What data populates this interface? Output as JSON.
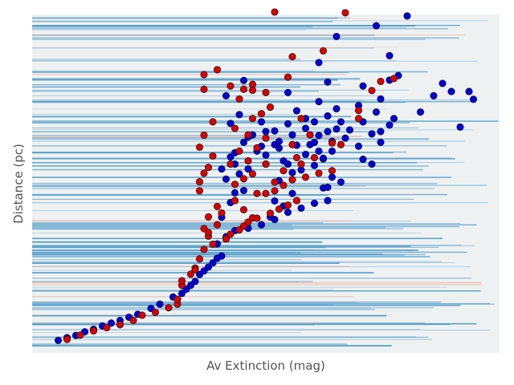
{
  "chart_data": {
    "type": "scatter",
    "title": "",
    "xlabel": "Av Extinction (mag)",
    "ylabel": "Distance (pc)",
    "xlim": [
      0,
      10
    ],
    "ylim": [
      0,
      1000
    ],
    "x_ticks_visible": false,
    "y_ticks_visible": false,
    "background": "#eef1f1",
    "background_lines": {
      "blue": "#4a98c8",
      "red": "#f0b8a8"
    },
    "series": [
      {
        "color": "#0000dd",
        "points": [
          [
            0.3,
            19
          ],
          [
            0.5,
            27
          ],
          [
            0.7,
            34
          ],
          [
            0.9,
            45
          ],
          [
            1.1,
            53
          ],
          [
            1.3,
            63
          ],
          [
            1.5,
            72
          ],
          [
            1.7,
            80
          ],
          [
            1.9,
            90
          ],
          [
            2.1,
            99
          ],
          [
            2.4,
            117
          ],
          [
            2.6,
            130
          ],
          [
            2.9,
            152
          ],
          [
            3.1,
            163
          ],
          [
            3.2,
            176
          ],
          [
            3.3,
            188
          ],
          [
            3.4,
            200
          ],
          [
            3.5,
            221
          ],
          [
            3.6,
            232
          ],
          [
            3.7,
            244
          ],
          [
            3.8,
            257
          ],
          [
            3.9,
            271
          ],
          [
            4.0,
            278
          ],
          [
            3.9,
            315
          ],
          [
            4.1,
            337
          ],
          [
            4.3,
            356
          ],
          [
            4.6,
            363
          ],
          [
            4.9,
            374
          ],
          [
            5.2,
            390
          ],
          [
            5.5,
            412
          ],
          [
            5.8,
            425
          ],
          [
            6.1,
            440
          ],
          [
            6.4,
            448
          ],
          [
            4.0,
            397
          ],
          [
            4.2,
            442
          ],
          [
            4.3,
            472
          ],
          [
            4.5,
            479
          ],
          [
            4.1,
            514
          ],
          [
            4.4,
            530
          ],
          [
            4.0,
            545
          ],
          [
            4.3,
            560
          ],
          [
            4.2,
            582
          ],
          [
            4.3,
            595
          ],
          [
            4.5,
            627
          ],
          [
            4.6,
            643
          ],
          [
            5.0,
            660
          ],
          [
            4.2,
            685
          ],
          [
            4.4,
            712
          ],
          [
            4.1,
            770
          ],
          [
            4.5,
            817
          ],
          [
            5.1,
            398
          ],
          [
            5.4,
            431
          ],
          [
            5.2,
            447
          ],
          [
            5.6,
            470
          ],
          [
            5.3,
            509
          ],
          [
            6.3,
            487
          ],
          [
            6.4,
            489
          ],
          [
            5.6,
            534
          ],
          [
            5.8,
            542
          ],
          [
            6.1,
            556
          ],
          [
            5.0,
            588
          ],
          [
            5.3,
            609
          ],
          [
            5.7,
            618
          ],
          [
            6.3,
            576
          ],
          [
            5.2,
            662
          ],
          [
            5.5,
            684
          ],
          [
            6.1,
            627
          ],
          [
            6.2,
            648
          ],
          [
            6.4,
            708
          ],
          [
            6.7,
            690
          ],
          [
            5.7,
            724
          ],
          [
            6.2,
            752
          ],
          [
            5.5,
            780
          ],
          [
            6.4,
            812
          ],
          [
            7.1,
            740
          ],
          [
            6.2,
            872
          ],
          [
            7.4,
            653
          ],
          [
            7.6,
            627
          ],
          [
            7.2,
            800
          ],
          [
            8.0,
            832
          ],
          [
            7.8,
            893
          ],
          [
            6.6,
            952
          ],
          [
            7.5,
            985
          ],
          [
            8.2,
            1015
          ],
          [
            7.8,
            818
          ],
          [
            6.3,
            578
          ],
          [
            6.0,
            620
          ],
          [
            5.6,
            650
          ],
          [
            6.5,
            630
          ],
          [
            6.8,
            640
          ],
          [
            6.4,
            660
          ],
          [
            5.9,
            700
          ],
          [
            6.6,
            730
          ],
          [
            5.5,
            560
          ],
          [
            5.9,
            590
          ],
          [
            6.2,
            600
          ],
          [
            5.4,
            570
          ],
          [
            4.9,
            615
          ],
          [
            5.3,
            630
          ],
          [
            6.5,
            520
          ],
          [
            6.7,
            505
          ],
          [
            7.2,
            575
          ],
          [
            7.4,
            560
          ],
          [
            7.1,
            615
          ],
          [
            7.6,
            660
          ],
          [
            7.8,
            680
          ],
          [
            7.9,
            700
          ],
          [
            6.9,
            665
          ],
          [
            7.2,
            690
          ],
          [
            7.5,
            720
          ],
          [
            7.6,
            760
          ],
          [
            8.5,
            720
          ],
          [
            8.8,
            770
          ],
          [
            9.2,
            783
          ],
          [
            9.0,
            808
          ],
          [
            9.6,
            783
          ],
          [
            9.7,
            759
          ],
          [
            9.4,
            674
          ],
          [
            4.7,
            650
          ],
          [
            4.9,
            690
          ],
          [
            5.2,
            620
          ],
          [
            5.0,
            560
          ],
          [
            4.6,
            545
          ],
          [
            4.8,
            600
          ],
          [
            5.9,
            670
          ],
          [
            6.1,
            690
          ],
          [
            6.6,
            668
          ],
          [
            6.5,
            600
          ]
        ]
      },
      {
        "color": "#dd0000",
        "points": [
          [
            0.5,
            22
          ],
          [
            0.8,
            35
          ],
          [
            1.1,
            48
          ],
          [
            1.4,
            58
          ],
          [
            1.7,
            67
          ],
          [
            2.0,
            80
          ],
          [
            2.2,
            96
          ],
          [
            2.5,
            105
          ],
          [
            2.8,
            119
          ],
          [
            3.0,
            130
          ],
          [
            3.0,
            145
          ],
          [
            3.1,
            188
          ],
          [
            3.1,
            202
          ],
          [
            3.3,
            222
          ],
          [
            3.4,
            241
          ],
          [
            3.4,
            236
          ],
          [
            3.5,
            269
          ],
          [
            3.6,
            298
          ],
          [
            3.8,
            314
          ],
          [
            3.7,
            339
          ],
          [
            3.7,
            350
          ],
          [
            3.6,
            362
          ],
          [
            3.9,
            374
          ],
          [
            3.7,
            398
          ],
          [
            4.0,
            410
          ],
          [
            3.9,
            430
          ],
          [
            3.5,
            478
          ],
          [
            3.5,
            506
          ],
          [
            3.6,
            532
          ],
          [
            3.7,
            550
          ],
          [
            3.8,
            585
          ],
          [
            3.5,
            612
          ],
          [
            3.6,
            649
          ],
          [
            3.8,
            690
          ],
          [
            4.1,
            330
          ],
          [
            4.2,
            345
          ],
          [
            4.4,
            358
          ],
          [
            4.5,
            370
          ],
          [
            4.6,
            382
          ],
          [
            4.7,
            395
          ],
          [
            4.5,
            420
          ],
          [
            4.3,
            448
          ],
          [
            4.8,
            394
          ],
          [
            5.1,
            409
          ],
          [
            5.3,
            422
          ],
          [
            5.5,
            434
          ],
          [
            5.7,
            448
          ],
          [
            5.0,
            470
          ],
          [
            5.2,
            478
          ],
          [
            5.4,
            495
          ],
          [
            4.3,
            498
          ],
          [
            4.5,
            515
          ],
          [
            4.7,
            530
          ],
          [
            4.2,
            560
          ],
          [
            4.6,
            570
          ],
          [
            4.4,
            600
          ],
          [
            4.8,
            610
          ],
          [
            5.0,
            640
          ],
          [
            4.6,
            650
          ],
          [
            4.3,
            670
          ],
          [
            4.7,
            700
          ],
          [
            4.9,
            715
          ],
          [
            5.1,
            735
          ],
          [
            4.4,
            760
          ],
          [
            4.5,
            790
          ],
          [
            4.7,
            805
          ],
          [
            5.2,
            505
          ],
          [
            5.6,
            512
          ],
          [
            5.9,
            520
          ],
          [
            6.2,
            532
          ],
          [
            6.5,
            540
          ],
          [
            5.8,
            560
          ],
          [
            6.1,
            580
          ],
          [
            5.4,
            540
          ],
          [
            5.7,
            580
          ],
          [
            5.6,
            620
          ],
          [
            6.0,
            650
          ],
          [
            6.5,
            625
          ],
          [
            6.7,
            620
          ],
          [
            7.1,
            700
          ],
          [
            7.1,
            725
          ],
          [
            3.6,
            790
          ],
          [
            3.6,
            835
          ],
          [
            3.9,
            850
          ],
          [
            4.2,
            800
          ],
          [
            4.7,
            787
          ],
          [
            5.0,
            780
          ],
          [
            5.5,
            827
          ],
          [
            5.6,
            890
          ],
          [
            6.3,
            908
          ],
          [
            7.4,
            786
          ],
          [
            7.6,
            814
          ],
          [
            7.9,
            823
          ],
          [
            6.8,
            1025
          ],
          [
            5.2,
            1027
          ],
          [
            5.0,
            560
          ],
          [
            4.8,
            470
          ],
          [
            5.8,
            700
          ]
        ]
      }
    ]
  }
}
